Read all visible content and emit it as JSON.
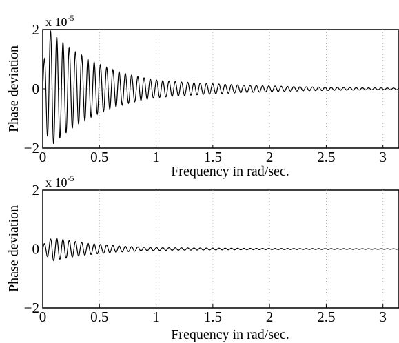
{
  "chart_data": [
    {
      "type": "line",
      "title": "",
      "xlabel": "Frequency in rad/sec.",
      "ylabel": "Phase deviation",
      "scale_label": {
        "base": "x 10",
        "exponent": "-5"
      },
      "xlim": [
        0,
        3.1416
      ],
      "ylim": [
        -2,
        2
      ],
      "xticks": [
        0,
        0.5,
        1,
        1.5,
        2,
        2.5,
        3
      ],
      "xtick_labels": [
        "0",
        "0.5",
        "1",
        "1.5",
        "2",
        "2.5",
        "3"
      ],
      "yticks": [
        -2,
        0,
        2
      ],
      "ytick_labels": [
        "−2",
        "0",
        "2"
      ],
      "grid": true,
      "series": [
        {
          "description": "damped oscillation about 0",
          "peak_amplitude": 2.0,
          "peak_at_x": 0.06,
          "amplitude_at_1": 0.3,
          "amplitude_at_2": 0.1,
          "amplitude_at_3": 0.03,
          "oscillation_period": 0.055
        }
      ]
    },
    {
      "type": "line",
      "title": "",
      "xlabel": "Frequency in rad/sec.",
      "ylabel": "Phase deviation",
      "scale_label": {
        "base": "x 10",
        "exponent": "-5"
      },
      "xlim": [
        0,
        3.1416
      ],
      "ylim": [
        -2,
        2
      ],
      "xticks": [
        0,
        0.5,
        1,
        1.5,
        2,
        2.5,
        3
      ],
      "xtick_labels": [
        "0",
        "0.5",
        "1",
        "1.5",
        "2",
        "2.5",
        "3"
      ],
      "yticks": [
        -2,
        0,
        2
      ],
      "ytick_labels": [
        "−2",
        "0",
        "2"
      ],
      "grid": true,
      "series": [
        {
          "description": "damped oscillation about 0",
          "peak_amplitude": 0.4,
          "peak_at_x": 0.09,
          "amplitude_at_1": 0.05,
          "amplitude_at_2": 0.02,
          "amplitude_at_3": 0.01,
          "oscillation_period": 0.055
        }
      ]
    }
  ]
}
